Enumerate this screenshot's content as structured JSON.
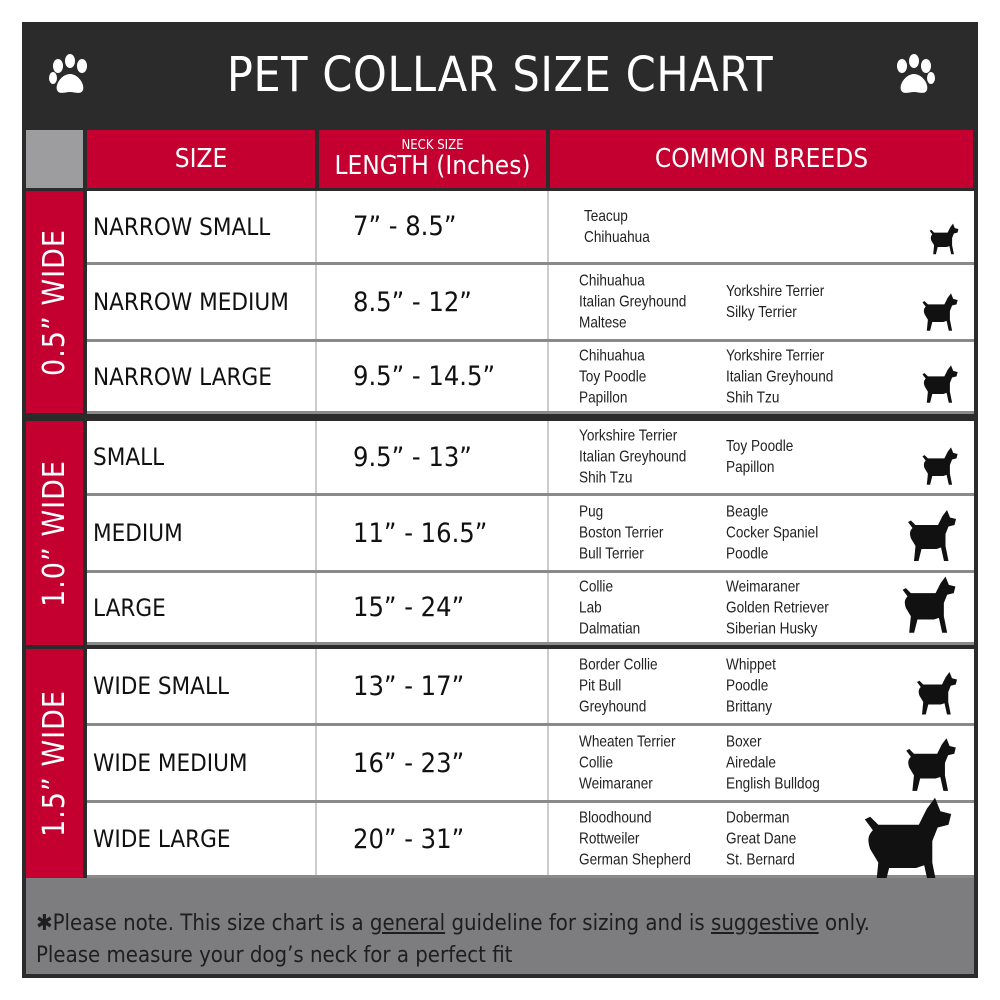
{
  "title": "PET COLLAR SIZE CHART",
  "headers": {
    "size": "SIZE",
    "length_small": "NECK SIZE",
    "length": "LENGTH (Inches)",
    "breeds": "COMMON BREEDS"
  },
  "colors": {
    "accent": "#c3002f",
    "frame": "#2b2b2b",
    "footer": "#7d7d7f"
  },
  "groups": [
    {
      "label": "0.5” WIDE"
    },
    {
      "label": "1.0” WIDE"
    },
    {
      "label": "1.5” WIDE"
    }
  ],
  "rows": [
    {
      "size": "NARROW SMALL",
      "length": "7” - 8.5”",
      "breeds_left": [
        "Teacup",
        "Chihuahua"
      ],
      "breeds_right": [],
      "icon": "yorkie-silhouette-icon"
    },
    {
      "size": "NARROW MEDIUM",
      "length": "8.5” - 12”",
      "breeds_left": [
        "Chihuahua",
        "Italian Greyhound",
        "Maltese"
      ],
      "breeds_right": [
        "Yorkshire Terrier",
        "Silky Terrier"
      ],
      "icon": "chihuahua-silhouette-icon"
    },
    {
      "size": "NARROW LARGE",
      "length": "9.5” - 14.5”",
      "breeds_left": [
        "Chihuahua",
        "Toy Poodle",
        "Papillon"
      ],
      "breeds_right": [
        "Yorkshire Terrier",
        "Italian Greyhound",
        "Shih Tzu"
      ],
      "icon": "pomeranian-silhouette-icon"
    },
    {
      "size": "SMALL",
      "length": "9.5” - 13”",
      "breeds_left": [
        "Yorkshire Terrier",
        "Italian Greyhound",
        "Shih Tzu"
      ],
      "breeds_right": [
        "Toy Poodle",
        "Papillon"
      ],
      "icon": "pomeranian-silhouette-icon"
    },
    {
      "size": "MEDIUM",
      "length": "11” - 16.5”",
      "breeds_left": [
        "Pug",
        "Boston Terrier",
        "Bull Terrier"
      ],
      "breeds_right": [
        "Beagle",
        "Cocker Spaniel",
        "Poodle"
      ],
      "icon": "dachshund-silhouette-icon"
    },
    {
      "size": "LARGE",
      "length": "15” - 24”",
      "breeds_left": [
        "Collie",
        "Lab",
        "Dalmatian"
      ],
      "breeds_right": [
        "Weimaraner",
        "Golden Retriever",
        "Siberian Husky"
      ],
      "icon": "shepherd-silhouette-icon"
    },
    {
      "size": "WIDE SMALL",
      "length": "13” - 17”",
      "breeds_left": [
        "Border Collie",
        "Pit Bull",
        "Greyhound"
      ],
      "breeds_right": [
        "Whippet",
        "Poodle",
        "Brittany"
      ],
      "icon": "bulldog-silhouette-icon"
    },
    {
      "size": "WIDE MEDIUM",
      "length": "16” - 23”",
      "breeds_left": [
        "Wheaten Terrier",
        "Collie",
        "Weimaraner"
      ],
      "breeds_right": [
        "Boxer",
        "Airedale",
        "English Bulldog"
      ],
      "icon": "pitbull-silhouette-icon"
    },
    {
      "size": "WIDE LARGE",
      "length": "20” - 31”",
      "breeds_left": [
        "Bloodhound",
        "Rottweiler",
        "German Shepherd"
      ],
      "breeds_right": [
        "Doberman",
        "Great Dane",
        "St. Bernard"
      ],
      "icon": "doberman-silhouette-icon"
    }
  ],
  "footer": {
    "p1": "✱Please note. This size chart is a ",
    "u1": "general",
    "p2": " guideline for sizing and is ",
    "u2": "suggestive",
    "p3": " only.",
    "line2": "Please measure your dog’s neck for a perfect fit"
  }
}
